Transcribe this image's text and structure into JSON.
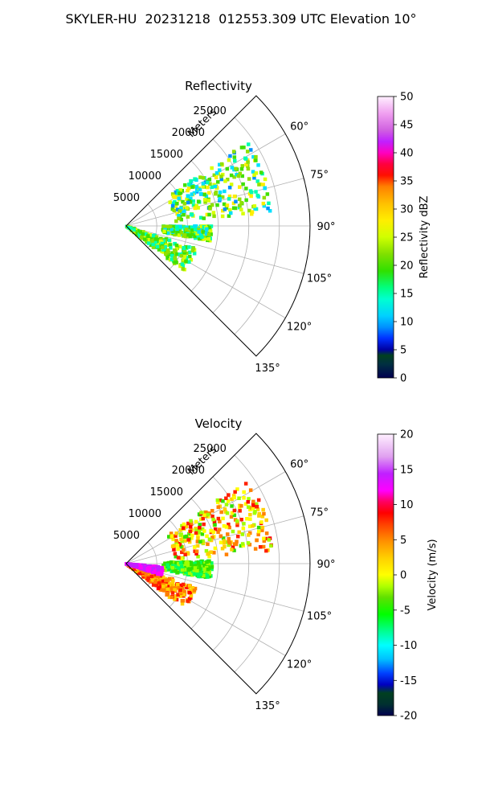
{
  "figure_title": "SKYLER-HU  20231218  012553.309 UTC Elevation 10°",
  "colors": {
    "reflectivity_scale": [
      "#00004c",
      "#003f3f",
      "#00c000",
      "#00ff00",
      "#00ffff",
      "#0000ff",
      "#008000",
      "#ffff00",
      "#ff8000",
      "#ff0000",
      "#ff00ff",
      "#ffffff"
    ],
    "velocity_scale": [
      "#00004c",
      "#0000ff",
      "#00ffff",
      "#00ff00",
      "#ffff00",
      "#ff8000",
      "#ff0000",
      "#ff00ff",
      "#ffffff"
    ],
    "grid": "#b0b0b0"
  },
  "chart_data": [
    {
      "type": "heatmap",
      "projection": "polar-sector",
      "title": "Reflectivity",
      "radial_axis_label": "Meters",
      "radial_ticks": [
        5000,
        10000,
        15000,
        20000,
        25000
      ],
      "radial_range": [
        0,
        30000
      ],
      "angle_ticks": [
        "60°",
        "75°",
        "90°",
        "105°",
        "120°",
        "135°"
      ],
      "angle_tick_values": [
        60,
        75,
        90,
        105,
        120,
        135
      ],
      "angle_range": [
        45,
        135
      ],
      "grid": true,
      "colorbar": {
        "label": "Reflectivity dBZ",
        "ticks": [
          0,
          5,
          10,
          15,
          20,
          25,
          30,
          35,
          40,
          45,
          50
        ],
        "range": [
          0,
          50
        ]
      },
      "echo_regions": [
        {
          "az_range": [
            55,
            85
          ],
          "r_range": [
            8000,
            24000
          ],
          "value_range": [
            10,
            28
          ]
        },
        {
          "az_range": [
            90,
            100
          ],
          "r_range": [
            6000,
            14000
          ],
          "value_range": [
            12,
            25
          ]
        },
        {
          "az_range": [
            108,
            128
          ],
          "r_range": [
            0,
            12000
          ],
          "value_range": [
            15,
            25
          ]
        }
      ]
    },
    {
      "type": "heatmap",
      "projection": "polar-sector",
      "title": "Velocity",
      "radial_axis_label": "Meters",
      "radial_ticks": [
        5000,
        10000,
        15000,
        20000,
        25000
      ],
      "radial_range": [
        0,
        30000
      ],
      "angle_ticks": [
        "60°",
        "75°",
        "90°",
        "105°",
        "120°",
        "135°"
      ],
      "angle_tick_values": [
        60,
        75,
        90,
        105,
        120,
        135
      ],
      "angle_range": [
        45,
        135
      ],
      "grid": true,
      "colorbar": {
        "label": "Velocity (m/s)",
        "ticks": [
          -20,
          -15,
          -10,
          -5,
          0,
          5,
          10,
          15,
          20
        ],
        "range": [
          -20,
          20
        ]
      },
      "echo_regions": [
        {
          "az_range": [
            55,
            85
          ],
          "r_range": [
            8000,
            24000
          ],
          "value_range": [
            -3,
            12
          ]
        },
        {
          "az_range": [
            88,
            100
          ],
          "r_range": [
            6000,
            14000
          ],
          "value_range": [
            -8,
            0
          ]
        },
        {
          "az_range": [
            108,
            128
          ],
          "r_range": [
            0,
            12000
          ],
          "value_range": [
            3,
            12
          ]
        },
        {
          "az_range": [
            95,
            108
          ],
          "r_range": [
            0,
            6000
          ],
          "value_range": [
            14,
            18
          ]
        }
      ]
    }
  ]
}
